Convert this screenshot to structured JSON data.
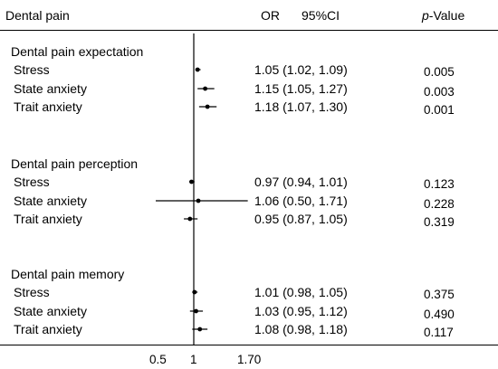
{
  "chart_data": {
    "type": "forest",
    "header": {
      "label": "Dental pain",
      "or": "OR",
      "ci": "95%CI",
      "p_italic": "p",
      "p_rest": "-Value"
    },
    "reference_line": 1,
    "x_ticks": [
      "0.5",
      "1",
      "1.70"
    ],
    "groups": [
      {
        "title": "Dental pain expectation",
        "rows": [
          {
            "label": "Stress",
            "or": 1.05,
            "lo": 1.02,
            "hi": 1.09,
            "ci_text": "1.05 (1.02, 1.09)",
            "p": "0.005"
          },
          {
            "label": "State anxiety",
            "or": 1.15,
            "lo": 1.05,
            "hi": 1.27,
            "ci_text": "1.15 (1.05, 1.27)",
            "p": "0.003"
          },
          {
            "label": "Trait anxiety",
            "or": 1.18,
            "lo": 1.07,
            "hi": 1.3,
            "ci_text": "1.18 (1.07, 1.30)",
            "p": "0.001"
          }
        ]
      },
      {
        "title": "Dental pain perception",
        "rows": [
          {
            "label": "Stress",
            "or": 0.97,
            "lo": 0.94,
            "hi": 1.01,
            "ci_text": "0.97 (0.94, 1.01)",
            "p": "0.123"
          },
          {
            "label": "State anxiety",
            "or": 1.06,
            "lo": 0.5,
            "hi": 1.71,
            "ci_text": "1.06 (0.50, 1.71)",
            "p": "0.228"
          },
          {
            "label": "Trait anxiety",
            "or": 0.95,
            "lo": 0.87,
            "hi": 1.05,
            "ci_text": "0.95 (0.87, 1.05)",
            "p": "0.319"
          }
        ]
      },
      {
        "title": "Dental pain memory",
        "rows": [
          {
            "label": "Stress",
            "or": 1.01,
            "lo": 0.98,
            "hi": 1.05,
            "ci_text": "1.01 (0.98, 1.05)",
            "p": "0.375"
          },
          {
            "label": "State anxiety",
            "or": 1.03,
            "lo": 0.95,
            "hi": 1.12,
            "ci_text": "1.03 (0.95, 1.12)",
            "p": "0.490"
          },
          {
            "label": "Trait anxiety",
            "or": 1.08,
            "lo": 0.98,
            "hi": 1.18,
            "ci_text": "1.08 (0.98, 1.18)",
            "p": "0.117"
          }
        ]
      }
    ]
  }
}
